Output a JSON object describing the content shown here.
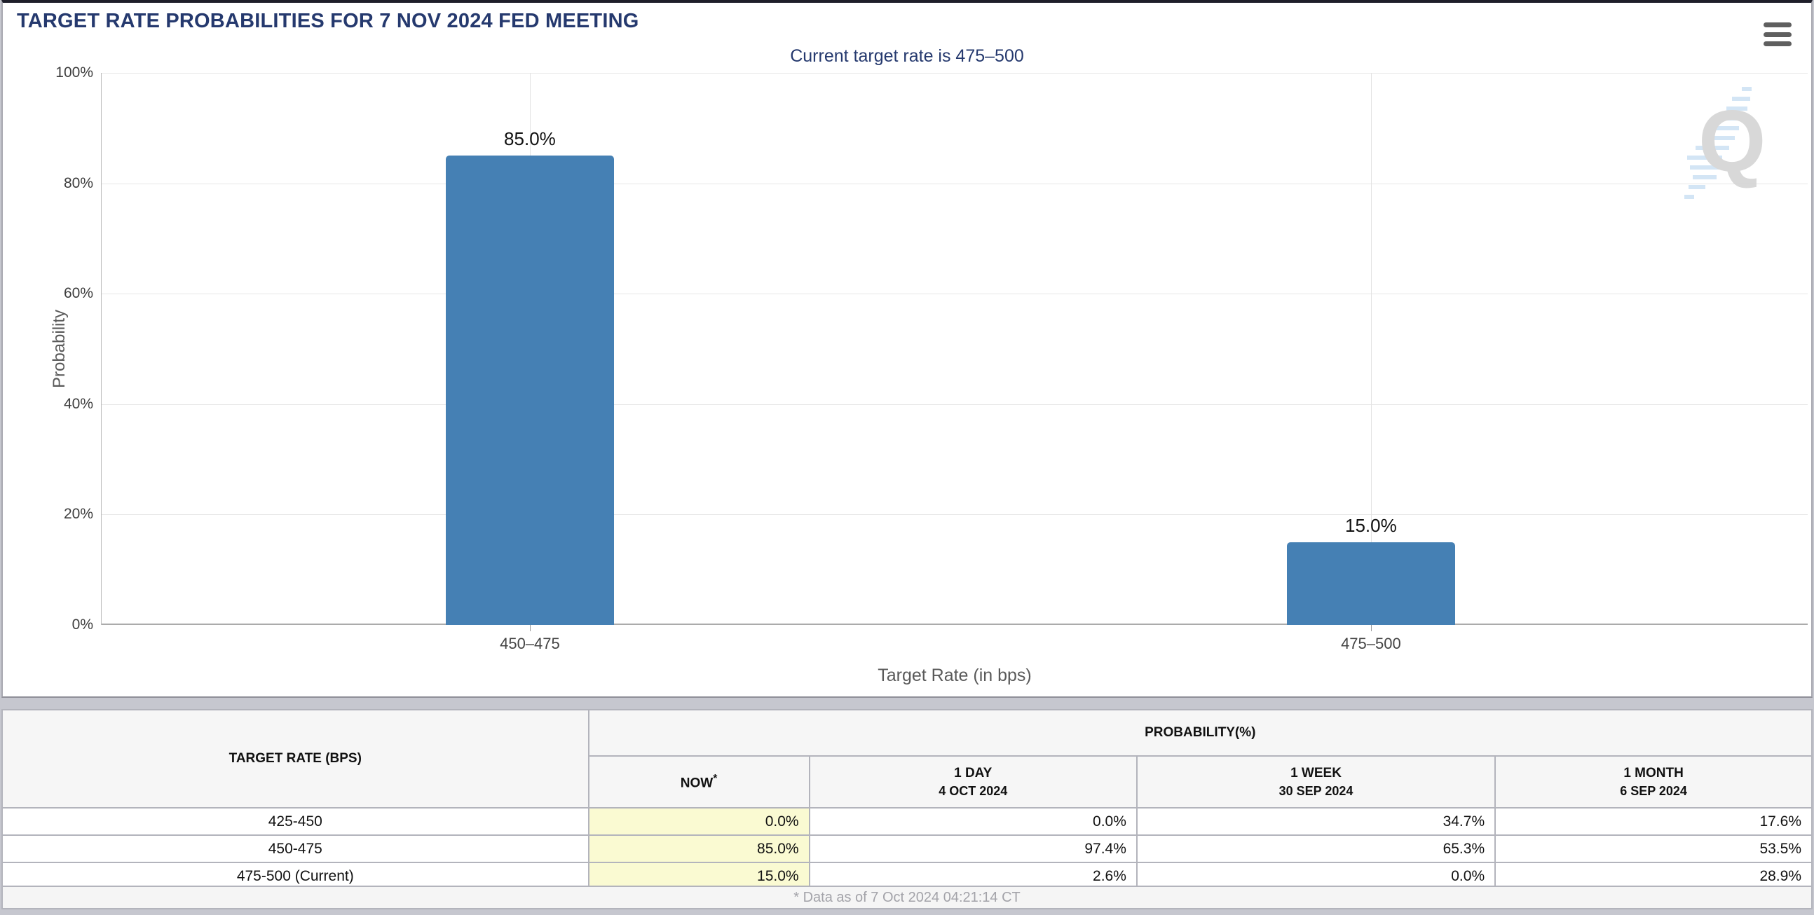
{
  "header": {
    "title": "TARGET RATE PROBABILITIES FOR 7 NOV 2024 FED MEETING"
  },
  "chart_data": {
    "type": "bar",
    "title": "TARGET RATE PROBABILITIES FOR 7 NOV 2024 FED MEETING",
    "subtitle": "Current target rate is 475–500",
    "xlabel": "Target Rate (in bps)",
    "ylabel": "Probability",
    "categories": [
      "450–475",
      "475–500"
    ],
    "values": [
      85.0,
      15.0
    ],
    "bar_labels": [
      "85.0%",
      "15.0%"
    ],
    "y_ticks": [
      "0%",
      "20%",
      "40%",
      "60%",
      "80%",
      "100%"
    ],
    "ylim": [
      0,
      100
    ],
    "grid": true,
    "legend": false,
    "bar_color": "#4580b4",
    "watermark_letter": "Q"
  },
  "table": {
    "rate_header": "TARGET RATE (BPS)",
    "group_header": "PROBABILITY(%)",
    "columns": [
      {
        "label": "NOW",
        "sup": "*"
      },
      {
        "label": "1 DAY",
        "sub": "4 OCT 2024"
      },
      {
        "label": "1 WEEK",
        "sub": "30 SEP 2024"
      },
      {
        "label": "1 MONTH",
        "sub": "6 SEP 2024"
      }
    ],
    "rows": [
      {
        "rate": "425-450",
        "now": "0.0%",
        "day": "0.0%",
        "week": "34.7%",
        "month": "17.6%"
      },
      {
        "rate": "450-475",
        "now": "85.0%",
        "day": "97.4%",
        "week": "65.3%",
        "month": "53.5%"
      },
      {
        "rate": "475-500 (Current)",
        "now": "15.0%",
        "day": "2.6%",
        "week": "0.0%",
        "month": "28.9%"
      }
    ]
  },
  "footer": {
    "note": "* Data as of 7 Oct 2024 04:21:14 CT"
  },
  "colors": {
    "title_navy": "#25396e",
    "bar_blue": "#4580b4",
    "now_cell_yellow": "#fafad2"
  }
}
